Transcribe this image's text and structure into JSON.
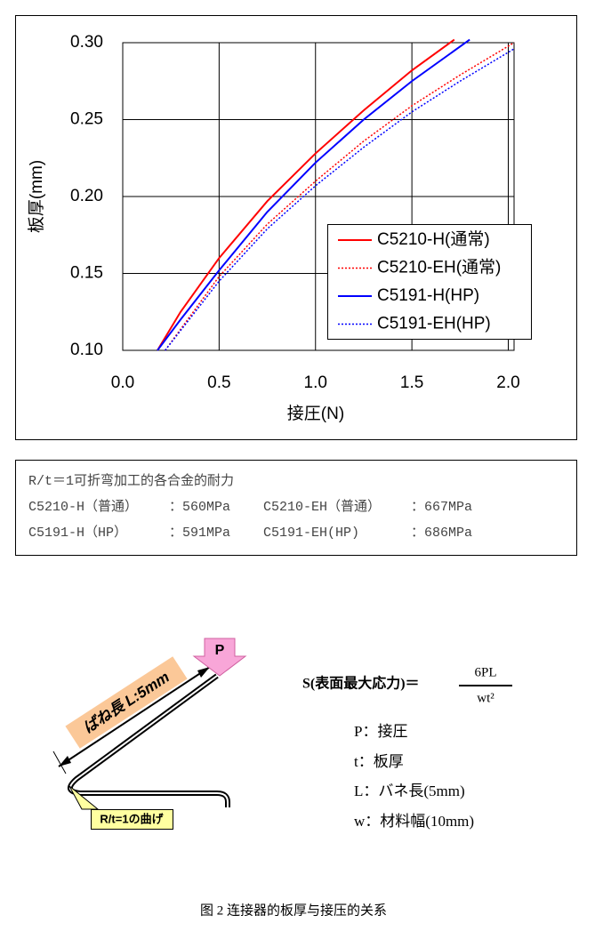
{
  "chart_data": {
    "type": "line",
    "xlabel": "接圧(N)",
    "ylabel": "板厚(mm)",
    "xlim": [
      0,
      2.03
    ],
    "ylim": [
      0.1,
      0.3
    ],
    "xticks": [
      {
        "value": 0,
        "label": "0.0"
      },
      {
        "value": 0.5,
        "label": "0.5"
      },
      {
        "value": 1,
        "label": "1.0"
      },
      {
        "value": 1.5,
        "label": "1.5"
      },
      {
        "value": 2,
        "label": "2.0"
      }
    ],
    "yticks": [
      {
        "value": 0.1,
        "label": "0.10"
      },
      {
        "value": 0.15,
        "label": "0.15"
      },
      {
        "value": 0.2,
        "label": "0.20"
      },
      {
        "value": 0.25,
        "label": "0.25"
      },
      {
        "value": 0.3,
        "label": "0.30"
      }
    ],
    "grid": true,
    "legend": "lower right",
    "series": [
      {
        "name": "C5210-H(通常)",
        "color": "#ff0000",
        "style": "solid",
        "x": [
          0.18,
          0.3,
          0.5,
          0.75,
          1.0,
          1.25,
          1.5,
          1.72
        ],
        "values": [
          0.1,
          0.125,
          0.16,
          0.197,
          0.228,
          0.256,
          0.282,
          0.302
        ]
      },
      {
        "name": "C5210-EH(通常)",
        "color": "#ff0000",
        "style": "dotted",
        "x": [
          0.22,
          0.5,
          0.75,
          1.0,
          1.25,
          1.5,
          1.75,
          2.03
        ],
        "values": [
          0.1,
          0.148,
          0.182,
          0.21,
          0.236,
          0.259,
          0.279,
          0.3
        ]
      },
      {
        "name": "C5191-H(HP)",
        "color": "#0000ff",
        "style": "solid",
        "x": [
          0.18,
          0.3,
          0.5,
          0.75,
          1.0,
          1.25,
          1.5,
          1.8
        ],
        "values": [
          0.1,
          0.12,
          0.152,
          0.19,
          0.222,
          0.25,
          0.275,
          0.302
        ]
      },
      {
        "name": "C5191-EH(HP)",
        "color": "#0000ff",
        "style": "dotted",
        "x": [
          0.22,
          0.5,
          0.75,
          1.0,
          1.25,
          1.5,
          1.75,
          2.03
        ],
        "values": [
          0.1,
          0.145,
          0.179,
          0.207,
          0.232,
          0.255,
          0.275,
          0.296
        ]
      }
    ]
  },
  "note": {
    "title": "R/t＝1可折弯加工的各合金的耐力",
    "rows": [
      [
        "C5210-H（普通）",
        "：560MPa",
        "C5210-EH（普通）",
        "：667MPa"
      ],
      [
        "C5191-H（HP）",
        "：591MPa",
        "C5191-EH(HP)",
        "：686MPa"
      ]
    ]
  },
  "diagram": {
    "force_label": "P",
    "length_label": "ばね長 L:5mm",
    "bend_label": "R/t=1の曲げ",
    "formula": {
      "lhs": "S(表面最大応力)＝",
      "numerator": "6PL",
      "denominator": "wt²"
    },
    "legend": [
      "P：接圧",
      "t：板厚",
      "L：バネ長(5mm)",
      "w：材料幅(10mm)"
    ]
  },
  "caption": "图 2 连接器的板厚与接压的关系"
}
